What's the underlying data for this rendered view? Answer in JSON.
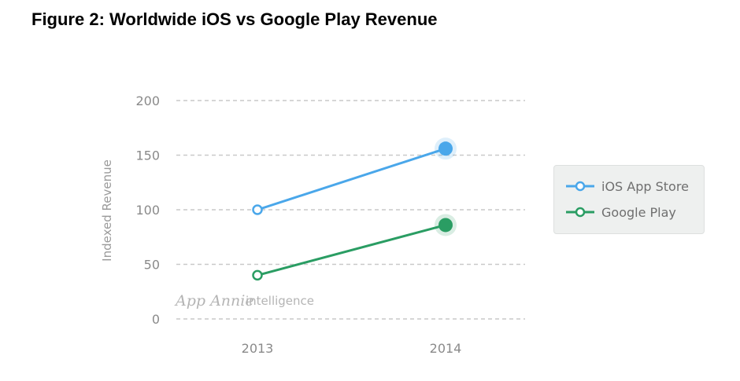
{
  "figure": {
    "title": "Figure 2: Worldwide iOS vs Google Play Revenue"
  },
  "watermark": {
    "brand": "App Annie",
    "suffix": "intelligence"
  },
  "chart_data": {
    "type": "line",
    "title": "",
    "xlabel": "",
    "ylabel": "Indexed Revenue",
    "categories": [
      "2013",
      "2014"
    ],
    "ylim": [
      0,
      200
    ],
    "yticks": [
      0,
      50,
      100,
      150,
      200
    ],
    "grid": true,
    "legend_position": "right",
    "series": [
      {
        "name": "iOS App Store",
        "values": [
          100,
          156
        ],
        "color": "#4aa7ea"
      },
      {
        "name": "Google Play",
        "values": [
          40,
          86
        ],
        "color": "#2a9d63"
      }
    ]
  }
}
